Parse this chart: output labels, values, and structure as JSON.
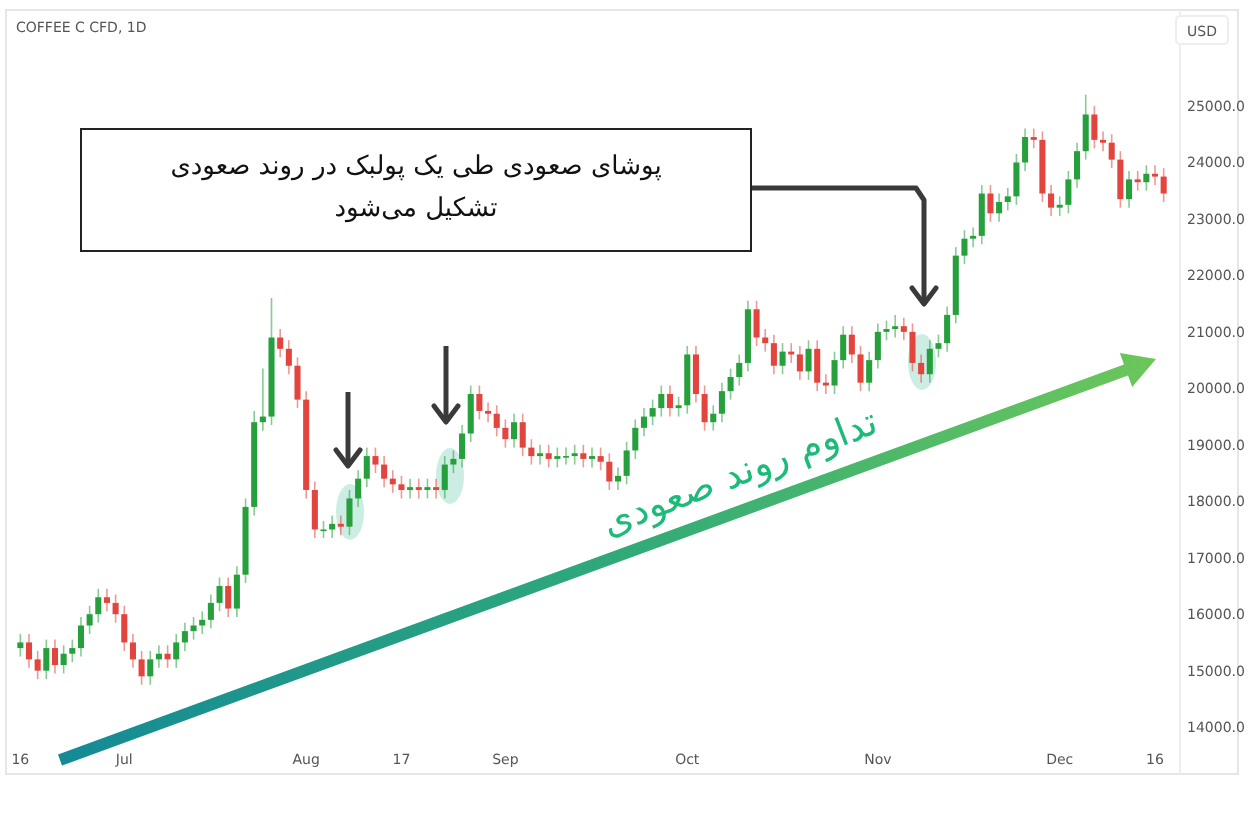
{
  "chart_data": {
    "type": "candlestick",
    "title": "COFFEE C CFD, 1D",
    "ylabel": "USD",
    "categories": [
      "16",
      null,
      null,
      null,
      null,
      null,
      null,
      null,
      null,
      null,
      null,
      null,
      "Jul",
      null,
      null,
      null,
      null,
      null,
      null,
      null,
      null,
      null,
      null,
      null,
      null,
      null,
      null,
      null,
      null,
      null,
      null,
      null,
      null,
      "Aug",
      null,
      null,
      null,
      null,
      null,
      null,
      null,
      null,
      null,
      null,
      "17",
      null,
      null,
      null,
      null,
      null,
      null,
      null,
      null,
      null,
      null,
      null,
      "Sep",
      null,
      null,
      null,
      null,
      null,
      null,
      null,
      null,
      null,
      null,
      null,
      null,
      null,
      null,
      null,
      null,
      null,
      null,
      null,
      null,
      "Oct",
      null,
      null,
      null,
      null,
      null,
      null,
      null,
      null,
      null,
      null,
      null,
      null,
      null,
      null,
      null,
      null,
      null,
      null,
      null,
      null,
      null,
      "Nov",
      null,
      null,
      null,
      null,
      null,
      null,
      null,
      null,
      null,
      null,
      null,
      null,
      null,
      null,
      null,
      null,
      null,
      null,
      null,
      null,
      "Dec",
      null,
      null,
      null,
      null,
      null,
      null,
      null,
      null,
      null,
      null,
      "16",
      null
    ],
    "ohlc": [
      [
        15400,
        15650,
        15250,
        15500
      ],
      [
        15500,
        15650,
        15050,
        15200
      ],
      [
        15200,
        15350,
        14850,
        15000
      ],
      [
        15000,
        15550,
        14850,
        15400
      ],
      [
        15400,
        15550,
        14950,
        15100
      ],
      [
        15100,
        15450,
        14950,
        15300
      ],
      [
        15300,
        15550,
        15150,
        15400
      ],
      [
        15400,
        15950,
        15250,
        15800
      ],
      [
        15800,
        16150,
        15650,
        16000
      ],
      [
        16000,
        16450,
        15850,
        16300
      ],
      [
        16300,
        16450,
        16050,
        16200
      ],
      [
        16200,
        16350,
        15850,
        16000
      ],
      [
        16000,
        16150,
        15350,
        15500
      ],
      [
        15500,
        15650,
        15050,
        15200
      ],
      [
        15200,
        15350,
        14750,
        14900
      ],
      [
        14900,
        15350,
        14750,
        15200
      ],
      [
        15200,
        15450,
        15050,
        15300
      ],
      [
        15300,
        15450,
        15050,
        15200
      ],
      [
        15200,
        15650,
        15050,
        15500
      ],
      [
        15500,
        15850,
        15350,
        15700
      ],
      [
        15700,
        15950,
        15550,
        15800
      ],
      [
        15800,
        16050,
        15650,
        15900
      ],
      [
        15900,
        16350,
        15750,
        16200
      ],
      [
        16200,
        16650,
        16050,
        16500
      ],
      [
        16500,
        16650,
        15950,
        16100
      ],
      [
        16100,
        16850,
        15950,
        16700
      ],
      [
        16700,
        18050,
        16550,
        17900
      ],
      [
        17900,
        19600,
        17750,
        19400
      ],
      [
        19400,
        20350,
        19250,
        19500
      ],
      [
        19500,
        21600,
        19350,
        20900
      ],
      [
        20900,
        21050,
        20550,
        20700
      ],
      [
        20700,
        20850,
        20250,
        20400
      ],
      [
        20400,
        20550,
        19650,
        19800
      ],
      [
        19800,
        19950,
        18050,
        18200
      ],
      [
        18200,
        18350,
        17350,
        17500
      ],
      [
        17500,
        17650,
        17350,
        17500
      ],
      [
        17500,
        17750,
        17350,
        17600
      ],
      [
        17600,
        17750,
        17400,
        17550
      ],
      [
        17550,
        18200,
        17400,
        18050
      ],
      [
        18050,
        18550,
        17900,
        18400
      ],
      [
        18400,
        18950,
        18250,
        18800
      ],
      [
        18800,
        18950,
        18500,
        18650
      ],
      [
        18650,
        18800,
        18250,
        18400
      ],
      [
        18400,
        18550,
        18150,
        18300
      ],
      [
        18300,
        18450,
        18050,
        18200
      ],
      [
        18200,
        18400,
        18050,
        18250
      ],
      [
        18250,
        18400,
        18050,
        18200
      ],
      [
        18200,
        18400,
        18050,
        18250
      ],
      [
        18250,
        18400,
        18050,
        18200
      ],
      [
        18200,
        18800,
        18050,
        18650
      ],
      [
        18650,
        18900,
        18500,
        18750
      ],
      [
        18750,
        19350,
        18600,
        19200
      ],
      [
        19200,
        20050,
        19050,
        19900
      ],
      [
        19900,
        20050,
        19450,
        19600
      ],
      [
        19600,
        19750,
        19400,
        19550
      ],
      [
        19550,
        19700,
        19150,
        19300
      ],
      [
        19300,
        19450,
        18950,
        19100
      ],
      [
        19100,
        19550,
        18950,
        19400
      ],
      [
        19400,
        19550,
        18800,
        18950
      ],
      [
        18950,
        19100,
        18650,
        18800
      ],
      [
        18800,
        19000,
        18650,
        18850
      ],
      [
        18850,
        19000,
        18600,
        18750
      ],
      [
        18750,
        18950,
        18600,
        18800
      ],
      [
        18800,
        18950,
        18650,
        18800
      ],
      [
        18800,
        19000,
        18650,
        18850
      ],
      [
        18850,
        19000,
        18600,
        18750
      ],
      [
        18750,
        18950,
        18600,
        18800
      ],
      [
        18800,
        18950,
        18550,
        18700
      ],
      [
        18700,
        18850,
        18200,
        18350
      ],
      [
        18350,
        18600,
        18200,
        18450
      ],
      [
        18450,
        19050,
        18300,
        18900
      ],
      [
        18900,
        19450,
        18750,
        19300
      ],
      [
        19300,
        19650,
        19150,
        19500
      ],
      [
        19500,
        19800,
        19350,
        19650
      ],
      [
        19650,
        20050,
        19500,
        19900
      ],
      [
        19900,
        20050,
        19500,
        19650
      ],
      [
        19650,
        19850,
        19500,
        19700
      ],
      [
        19700,
        20750,
        19550,
        20600
      ],
      [
        20600,
        20750,
        19750,
        19900
      ],
      [
        19900,
        20050,
        19250,
        19400
      ],
      [
        19400,
        19700,
        19250,
        19550
      ],
      [
        19550,
        20100,
        19400,
        19950
      ],
      [
        19950,
        20350,
        19800,
        20200
      ],
      [
        20200,
        20600,
        20050,
        20450
      ],
      [
        20450,
        21550,
        20300,
        21400
      ],
      [
        21400,
        21550,
        20750,
        20900
      ],
      [
        20900,
        21050,
        20650,
        20800
      ],
      [
        20800,
        20950,
        20250,
        20400
      ],
      [
        20400,
        20800,
        20250,
        20650
      ],
      [
        20650,
        20800,
        20450,
        20600
      ],
      [
        20600,
        20750,
        20150,
        20300
      ],
      [
        20300,
        20850,
        20150,
        20700
      ],
      [
        20700,
        20850,
        19950,
        20100
      ],
      [
        20100,
        20250,
        19900,
        20050
      ],
      [
        20050,
        20650,
        19900,
        20500
      ],
      [
        20500,
        21100,
        20350,
        20950
      ],
      [
        20950,
        21100,
        20450,
        20600
      ],
      [
        20600,
        20750,
        19950,
        20100
      ],
      [
        20100,
        20650,
        19950,
        20500
      ],
      [
        20500,
        21150,
        20350,
        21000
      ],
      [
        21000,
        21200,
        20850,
        21050
      ],
      [
        21050,
        21300,
        20900,
        21100
      ],
      [
        21100,
        21250,
        20850,
        21000
      ],
      [
        21000,
        21150,
        20300,
        20450
      ],
      [
        20450,
        20600,
        20100,
        20250
      ],
      [
        20250,
        20850,
        20100,
        20700
      ],
      [
        20700,
        20950,
        20550,
        20800
      ],
      [
        20800,
        21450,
        20650,
        21300
      ],
      [
        21300,
        22500,
        21150,
        22350
      ],
      [
        22350,
        22800,
        22200,
        22650
      ],
      [
        22650,
        22850,
        22500,
        22700
      ],
      [
        22700,
        23600,
        22550,
        23450
      ],
      [
        23450,
        23600,
        22950,
        23100
      ],
      [
        23100,
        23450,
        22950,
        23300
      ],
      [
        23300,
        23550,
        23150,
        23400
      ],
      [
        23400,
        24150,
        23250,
        24000
      ],
      [
        24000,
        24600,
        23850,
        24450
      ],
      [
        24450,
        24600,
        24250,
        24400
      ],
      [
        24400,
        24550,
        23300,
        23450
      ],
      [
        23450,
        23600,
        23050,
        23200
      ],
      [
        23200,
        23400,
        23050,
        23250
      ],
      [
        23250,
        23850,
        23100,
        23700
      ],
      [
        23700,
        24350,
        23550,
        24200
      ],
      [
        24200,
        25200,
        24050,
        24850
      ],
      [
        24850,
        25000,
        24250,
        24400
      ],
      [
        24400,
        24550,
        24200,
        24350
      ],
      [
        24350,
        24500,
        23900,
        24050
      ],
      [
        24050,
        24200,
        23200,
        23350
      ],
      [
        23350,
        23850,
        23200,
        23700
      ],
      [
        23700,
        23850,
        23500,
        23650
      ],
      [
        23650,
        23950,
        23500,
        23800
      ],
      [
        23800,
        23950,
        23600,
        23750
      ],
      [
        23750,
        23900,
        23300,
        23450
      ]
    ],
    "ylim": [
      13170,
      26700
    ],
    "yticks": [
      {
        "value": 14000,
        "label": "14000.0"
      },
      {
        "value": 15000,
        "label": "15000.0"
      },
      {
        "value": 16000,
        "label": "16000.0"
      },
      {
        "value": 17000,
        "label": "17000.0"
      },
      {
        "value": 18000,
        "label": "18000.0"
      },
      {
        "value": 19000,
        "label": "19000.0"
      },
      {
        "value": 20000,
        "label": "20000.0"
      },
      {
        "value": 21000,
        "label": "21000.0"
      },
      {
        "value": 22000,
        "label": "22000.0"
      },
      {
        "value": 23000,
        "label": "23000.0"
      },
      {
        "value": 24000,
        "label": "24000.0"
      },
      {
        "value": 25000,
        "label": "25000.0"
      }
    ],
    "annotations": [
      "پوشای صعودی طی یک پولبک در روند صعودی تشکیل می‌شود",
      "تداوم روند صعودی"
    ]
  }
}
